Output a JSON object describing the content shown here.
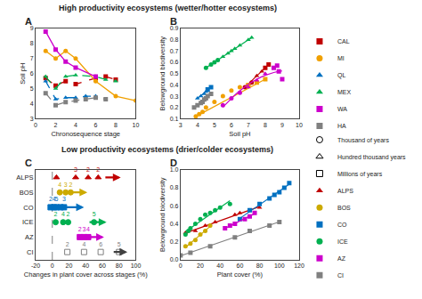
{
  "chart_data": [
    {
      "type": "line",
      "title": "A",
      "annotations": [
        "High productivity ecosystems (wetter/hotter ecosystems)"
      ],
      "xlabel": "Chronosequence stage",
      "ylabel": "Soil pH",
      "xlim": [
        0,
        10
      ],
      "ylim": [
        3,
        9
      ],
      "xticks": [
        0,
        2,
        4,
        6,
        8,
        10
      ],
      "yticks": [
        3,
        4,
        5,
        6,
        7,
        8,
        9
      ],
      "grid": false,
      "series": [
        {
          "color": "#c00000",
          "marker": "square",
          "line_style": "dashed",
          "x": [
            1,
            2,
            3,
            4,
            6,
            7,
            8
          ],
          "y": [
            5.7,
            5.2,
            5.5,
            5.3,
            5.7,
            5.8,
            5.6
          ]
        },
        {
          "color": "#f0a000",
          "marker": "circle",
          "line_style": "solid",
          "x": [
            1,
            2,
            3,
            4,
            6,
            8,
            10
          ],
          "y": [
            7.5,
            7.0,
            7.5,
            7.0,
            5.5,
            4.5,
            4.2
          ]
        },
        {
          "color": "#0070c0",
          "marker": "triangle-up",
          "line_style": "dashed",
          "x": [
            1,
            2,
            3,
            4,
            5,
            6
          ],
          "y": [
            5.5,
            4.3,
            4.4,
            4.4,
            4.5,
            4.5
          ]
        },
        {
          "color": "#00b050",
          "marker": "triangle-up",
          "line_style": "dashed",
          "x": [
            1,
            2,
            3,
            4,
            6,
            7,
            8
          ],
          "y": [
            5.8,
            5.0,
            5.8,
            5.9,
            5.8,
            5.6,
            5.5
          ]
        },
        {
          "color": "#cc00cc",
          "marker": "square",
          "line_style": "solid",
          "x": [
            1,
            2,
            3,
            4,
            6
          ],
          "y": [
            8.8,
            7.6,
            6.8,
            6.4,
            5.8
          ]
        },
        {
          "color": "#808080",
          "marker": "square",
          "line_style": "dashed",
          "x": [
            1,
            2,
            3,
            4,
            5,
            6,
            7
          ],
          "y": [
            4.7,
            3.9,
            4.1,
            4.2,
            4.3,
            4.4,
            4.3
          ]
        }
      ]
    },
    {
      "type": "scatter",
      "title": "B",
      "xlabel": "Soil pH",
      "ylabel": "Belowground biodiversity",
      "xlim": [
        3,
        10
      ],
      "ylim": [
        0.1,
        0.9
      ],
      "xticks": [
        3,
        4,
        5,
        6,
        7,
        8,
        9,
        10
      ],
      "yticks": [
        0.1,
        0.2,
        0.3,
        0.4,
        0.5,
        0.6,
        0.7,
        0.8,
        0.9
      ],
      "grid": false,
      "legend": "right",
      "series": [
        {
          "name": "CAL",
          "color": "#c00000",
          "marker": "square",
          "x": [
            6.8,
            7.0,
            7.2,
            7.5,
            7.8,
            8.0,
            8.2
          ],
          "y": [
            0.38,
            0.4,
            0.42,
            0.48,
            0.52,
            0.55,
            0.58
          ],
          "markers": [
            "circle",
            "circle",
            "circle",
            "triangle-up",
            "triangle-up",
            "square",
            "square"
          ],
          "trend_x": [
            6.8,
            8.2
          ],
          "trend_y": [
            0.38,
            0.58
          ]
        },
        {
          "name": "MI",
          "color": "#f0a000",
          "marker": "circle",
          "x": [
            3.9,
            4.1,
            4.3,
            4.5,
            5.0,
            5.5,
            6.0,
            6.5,
            7.0,
            7.5,
            8.0
          ],
          "y": [
            0.12,
            0.14,
            0.16,
            0.2,
            0.25,
            0.3,
            0.35,
            0.38,
            0.4,
            0.42,
            0.45
          ],
          "markers": [
            "circle",
            "circle",
            "circle",
            "circle",
            "circle",
            "circle",
            "circle",
            "circle",
            "square",
            "square",
            "square"
          ],
          "trend_x": [
            3.9,
            8.0
          ],
          "trend_y": [
            0.12,
            0.45
          ]
        },
        {
          "name": "QL",
          "color": "#0070c0",
          "marker": "triangle-up",
          "x": [
            4.0,
            4.2,
            4.4,
            4.5,
            4.6,
            4.8
          ],
          "y": [
            0.28,
            0.3,
            0.32,
            0.34,
            0.36,
            0.38
          ],
          "markers": [
            "triangle-up",
            "triangle-up",
            "triangle-up",
            "triangle-up",
            "square",
            "square"
          ],
          "trend_x": [
            4.0,
            4.8
          ],
          "trend_y": [
            0.28,
            0.38
          ]
        },
        {
          "name": "MEX",
          "color": "#00b050",
          "marker": "triangle-up",
          "x": [
            4.5,
            4.8,
            5.0,
            5.2,
            5.5,
            5.8,
            6.0,
            6.2,
            6.5,
            7.0,
            7.2
          ],
          "y": [
            0.55,
            0.58,
            0.6,
            0.62,
            0.65,
            0.68,
            0.7,
            0.72,
            0.75,
            0.8,
            0.82
          ],
          "markers": [
            "circle",
            "circle",
            "circle",
            "circle",
            "triangle-up",
            "triangle-up",
            "triangle-up",
            "triangle-up",
            "triangle-up",
            "triangle-up",
            "triangle-up"
          ],
          "trend_x": [
            4.5,
            7.2
          ],
          "trend_y": [
            0.55,
            0.82
          ]
        },
        {
          "name": "WA",
          "color": "#cc00cc",
          "marker": "square",
          "x": [
            5.5,
            6.0,
            6.5,
            7.0,
            7.5,
            8.0,
            8.5,
            8.7,
            8.8,
            9.0
          ],
          "y": [
            0.22,
            0.28,
            0.33,
            0.38,
            0.44,
            0.5,
            0.55,
            0.57,
            0.52,
            0.45
          ],
          "markers": [
            "circle",
            "circle",
            "circle",
            "triangle-up",
            "triangle-up",
            "triangle-up",
            "square",
            "square",
            "square",
            "square"
          ],
          "trend_x": [
            5.5,
            5.75,
            6.0,
            6.25,
            6.5,
            6.75,
            7.0,
            7.25,
            7.5,
            7.75,
            8.0,
            8.25,
            8.5,
            8.75,
            9.0
          ],
          "trend_y": [
            0.2029,
            0.2432,
            0.2807,
            0.3157,
            0.3479,
            0.3775,
            0.4044,
            0.4286,
            0.4501,
            0.469,
            0.4852,
            0.4988,
            0.5097,
            0.5179,
            0.5234
          ]
        },
        {
          "name": "HA",
          "color": "#808080",
          "marker": "square",
          "x": [
            3.8,
            4.0,
            4.2,
            4.3,
            4.4,
            4.5,
            4.6,
            4.8
          ],
          "y": [
            0.2,
            0.22,
            0.24,
            0.25,
            0.27,
            0.28,
            0.3,
            0.32
          ],
          "markers": [
            "square",
            "square",
            "square",
            "square",
            "square",
            "square",
            "square",
            "square"
          ],
          "trend_x": [
            3.8,
            4.8
          ],
          "trend_y": [
            0.2,
            0.32
          ]
        }
      ],
      "legend_markers": [
        {
          "name": "Thousand of years",
          "marker": "circle-open",
          "color": "black"
        },
        {
          "name": "Hundred thousand years",
          "marker": "triangle-up-open",
          "color": "black"
        },
        {
          "name": "Millions of years",
          "marker": "square-open",
          "color": "black"
        }
      ]
    },
    {
      "type": "arrow",
      "title": "C",
      "annotations": [
        "Low productivity ecosystems (drier/colder ecosystems)"
      ],
      "xlabel": "Changes in plant cover across stages (%)",
      "xlim": [
        -20,
        100
      ],
      "xticks": [
        -20,
        0,
        20,
        40,
        60,
        80,
        100
      ],
      "grid": false,
      "categories": [
        "ALPS",
        "BOS",
        "CO",
        "ICE",
        "AZ",
        "CI"
      ],
      "vlines": [
        0
      ],
      "arrows": [
        {
          "name": "ALPS",
          "color": "#c00000",
          "start": 62,
          "end": 82
        },
        {
          "name": "BOS",
          "color": "#ccaa00",
          "start": 15,
          "end": 42
        },
        {
          "name": "CO",
          "color": "#0070c0",
          "start": 5,
          "end": 38
        },
        {
          "name": "ICE",
          "color": "#00b050",
          "start": 43,
          "end": 65
        },
        {
          "name": "AZ",
          "color": "#cc00cc",
          "start": 42,
          "end": 62
        },
        {
          "name": "CI",
          "color": "#404040",
          "start": 72,
          "end": 90
        }
      ],
      "series": [
        {
          "name": "ALPS",
          "color": "#c00000",
          "marker": "triangle-up",
          "x": [
            5,
            28,
            43,
            55
          ],
          "labels": [
            null,
            "3",
            "2",
            "2"
          ]
        },
        {
          "name": "BOS",
          "color": "#ccaa00",
          "marker": "circle",
          "x": [
            9,
            16,
            22
          ],
          "labels": [
            "4",
            "3",
            "2"
          ]
        },
        {
          "name": "CO",
          "color": "#0070c0",
          "marker": "square",
          "x": [
            -2,
            2,
            5,
            10,
            14
          ],
          "labels": [
            "2",
            "4",
            "5",
            null,
            "3"
          ]
        },
        {
          "name": "ICE",
          "color": "#00b050",
          "marker": "circle",
          "x": [
            4,
            13,
            19,
            50
          ],
          "labels": [
            "2",
            "4",
            "2",
            "5"
          ]
        },
        {
          "name": "AZ",
          "color": "#cc00cc",
          "marker": "square",
          "x": [
            33,
            38,
            43
          ],
          "labels": [
            "2",
            "3",
            "4"
          ]
        },
        {
          "name": "CI",
          "color": "#808080",
          "marker": "square-open",
          "x": [
            18,
            38,
            58,
            80
          ],
          "labels": [
            "2",
            "4",
            "6",
            "5"
          ]
        }
      ]
    },
    {
      "type": "scatter",
      "title": "D",
      "xlabel": "Plant cover (%)",
      "ylabel": "Belowground biodiversity",
      "xlim": [
        0,
        120
      ],
      "ylim": [
        0.0,
        1.0
      ],
      "xticks": [
        0,
        20,
        40,
        60,
        80,
        100,
        120
      ],
      "yticks": [
        {
          "value": 0,
          "label": "0.0"
        },
        0.2,
        0.4,
        0.6,
        0.8,
        {
          "value": 1,
          "label": "1.0"
        }
      ],
      "grid": false,
      "legend": "right",
      "series": [
        {
          "name": "ALPS",
          "color": "#c00000",
          "marker": "triangle-up",
          "x": [
            5,
            15,
            25,
            35,
            55,
            60,
            70,
            80
          ],
          "y": [
            0.3,
            0.32,
            0.38,
            0.42,
            0.5,
            0.52,
            0.55,
            0.58
          ],
          "trend_x": [
            5,
            80
          ],
          "trend_y": [
            0.297,
            0.5906
          ]
        },
        {
          "name": "BOS",
          "color": "#ccaa00",
          "marker": "circle",
          "x": [
            5,
            10,
            15,
            20,
            25,
            30
          ],
          "y": [
            0.15,
            0.18,
            0.22,
            0.28,
            0.32,
            0.38
          ],
          "trend_x": [
            5,
            30
          ],
          "trend_y": [
            0.1386,
            0.3714
          ]
        },
        {
          "name": "CO",
          "color": "#0070c0",
          "marker": "square",
          "x": [
            60,
            70,
            80,
            90,
            95,
            100,
            105,
            110
          ],
          "y": [
            0.45,
            0.55,
            0.62,
            0.68,
            0.72,
            0.75,
            0.8,
            0.85
          ],
          "trend_x": [
            60,
            110
          ],
          "trend_y": [
            0.4599,
            0.8383
          ]
        },
        {
          "name": "ICE",
          "color": "#00b050",
          "marker": "circle",
          "x": [
            5,
            8,
            10,
            15,
            20,
            25,
            30,
            35,
            40,
            50
          ],
          "y": [
            0.28,
            0.32,
            0.35,
            0.4,
            0.45,
            0.5,
            0.52,
            0.55,
            0.58,
            0.62
          ],
          "trend_x": [
            5,
            50
          ],
          "trend_y": [
            0.3137,
            0.6567
          ]
        },
        {
          "name": "AZ",
          "color": "#cc00cc",
          "marker": "square",
          "x": [
            45,
            50,
            55,
            65,
            70,
            75
          ],
          "y": [
            0.35,
            0.38,
            0.4,
            0.45,
            0.48,
            0.52
          ],
          "trend_x": [
            45,
            75
          ],
          "trend_y": [
            0.3486,
            0.5114
          ]
        },
        {
          "name": "CI",
          "color": "#808080",
          "marker": "square",
          "x": [
            0,
            10,
            30,
            55,
            70,
            90,
            100
          ],
          "y": [
            0.05,
            0.08,
            0.15,
            0.25,
            0.32,
            0.38,
            0.42
          ],
          "trend_x": [
            0,
            100
          ],
          "trend_y": [
            0.0447,
            0.4213
          ]
        }
      ]
    }
  ]
}
